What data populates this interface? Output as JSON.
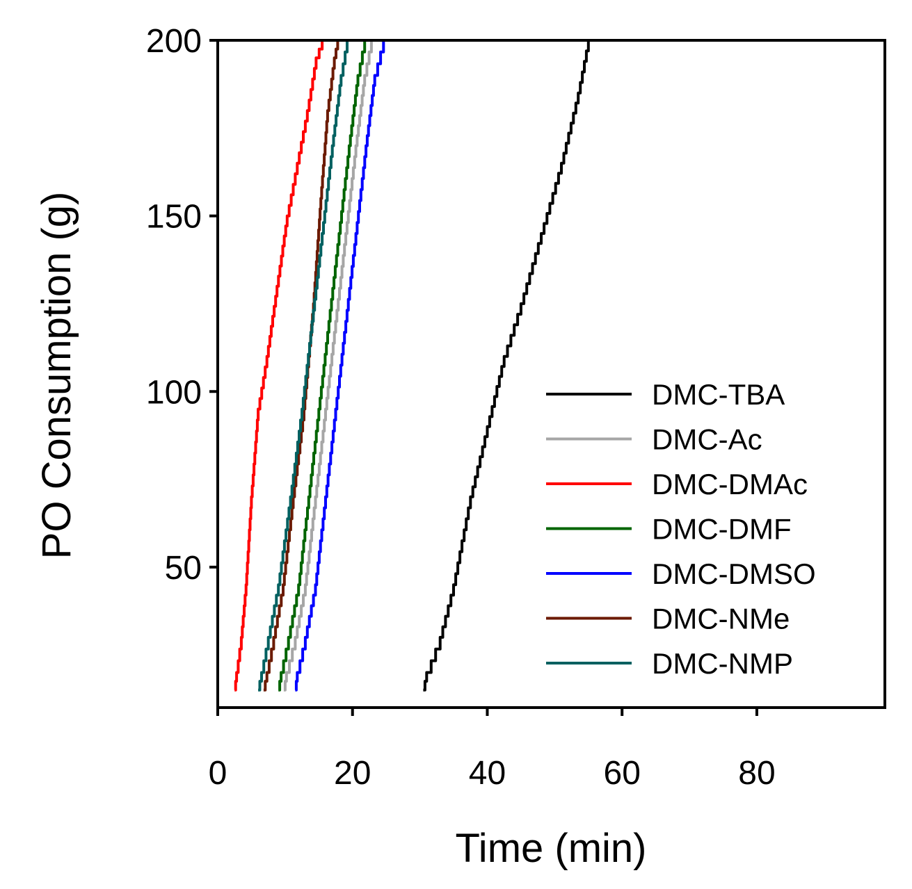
{
  "chart_data": {
    "type": "line",
    "title": "",
    "xlabel": "Time (min)",
    "ylabel": "PO Consumption (g)",
    "xlim": [
      0,
      99
    ],
    "ylim": [
      10,
      200
    ],
    "xticks": [
      0,
      20,
      40,
      60,
      80
    ],
    "yticks": [
      50,
      100,
      150,
      200
    ],
    "grid": false,
    "legend_position": "bottom-right",
    "series": [
      {
        "name": "DMC-TBA",
        "color": "#000000",
        "x": [
          30.5,
          31.0,
          33.0,
          35.0,
          37.5,
          40.0,
          42.5,
          45.0,
          48.0,
          51.0,
          53.5,
          55.0
        ],
        "y": [
          15,
          20,
          30,
          45,
          70,
          90,
          110,
          125,
          145,
          165,
          185,
          200
        ]
      },
      {
        "name": "DMC-Ac",
        "color": "#a6a6a6",
        "x": [
          9.8,
          10.2,
          11.5,
          13.0,
          14.5,
          16.0,
          17.5,
          19.0,
          20.5,
          21.8,
          22.8
        ],
        "y": [
          15,
          20,
          30,
          45,
          70,
          95,
          120,
          145,
          170,
          190,
          200
        ]
      },
      {
        "name": "DMC-DMAc",
        "color": "#ff0000",
        "x": [
          2.5,
          2.8,
          3.5,
          4.2,
          5.0,
          6.0,
          7.3,
          8.8,
          10.3,
          11.8,
          13.3,
          14.6,
          15.5
        ],
        "y": [
          15,
          20,
          30,
          45,
          70,
          95,
          110,
          130,
          150,
          165,
          180,
          195,
          200
        ]
      },
      {
        "name": "DMC-DMF",
        "color": "#006400",
        "x": [
          9.0,
          9.4,
          10.5,
          12.0,
          13.5,
          15.0,
          16.5,
          18.0,
          19.5,
          20.8,
          21.8
        ],
        "y": [
          15,
          20,
          30,
          45,
          70,
          95,
          120,
          145,
          170,
          190,
          200
        ]
      },
      {
        "name": "DMC-DMSO",
        "color": "#0000ff",
        "x": [
          11.5,
          11.8,
          13.0,
          14.5,
          16.0,
          17.5,
          19.0,
          20.5,
          22.0,
          23.3,
          24.6
        ],
        "y": [
          15,
          20,
          30,
          45,
          70,
          95,
          120,
          145,
          170,
          190,
          200
        ]
      },
      {
        "name": "DMC-NMe",
        "color": "#6b1a00",
        "x": [
          6.8,
          7.3,
          8.3,
          9.7,
          11.2,
          12.8,
          14.2,
          15.3,
          16.3,
          17.3,
          17.8
        ],
        "y": [
          15,
          20,
          30,
          45,
          70,
          95,
          125,
          155,
          180,
          195,
          200
        ]
      },
      {
        "name": "DMC-NMP",
        "color": "#006060",
        "x": [
          6.0,
          6.5,
          7.5,
          9.0,
          10.8,
          12.5,
          14.0,
          15.5,
          17.0,
          18.3,
          19.2
        ],
        "y": [
          15,
          20,
          30,
          45,
          70,
          95,
          120,
          145,
          170,
          190,
          200
        ]
      }
    ]
  }
}
